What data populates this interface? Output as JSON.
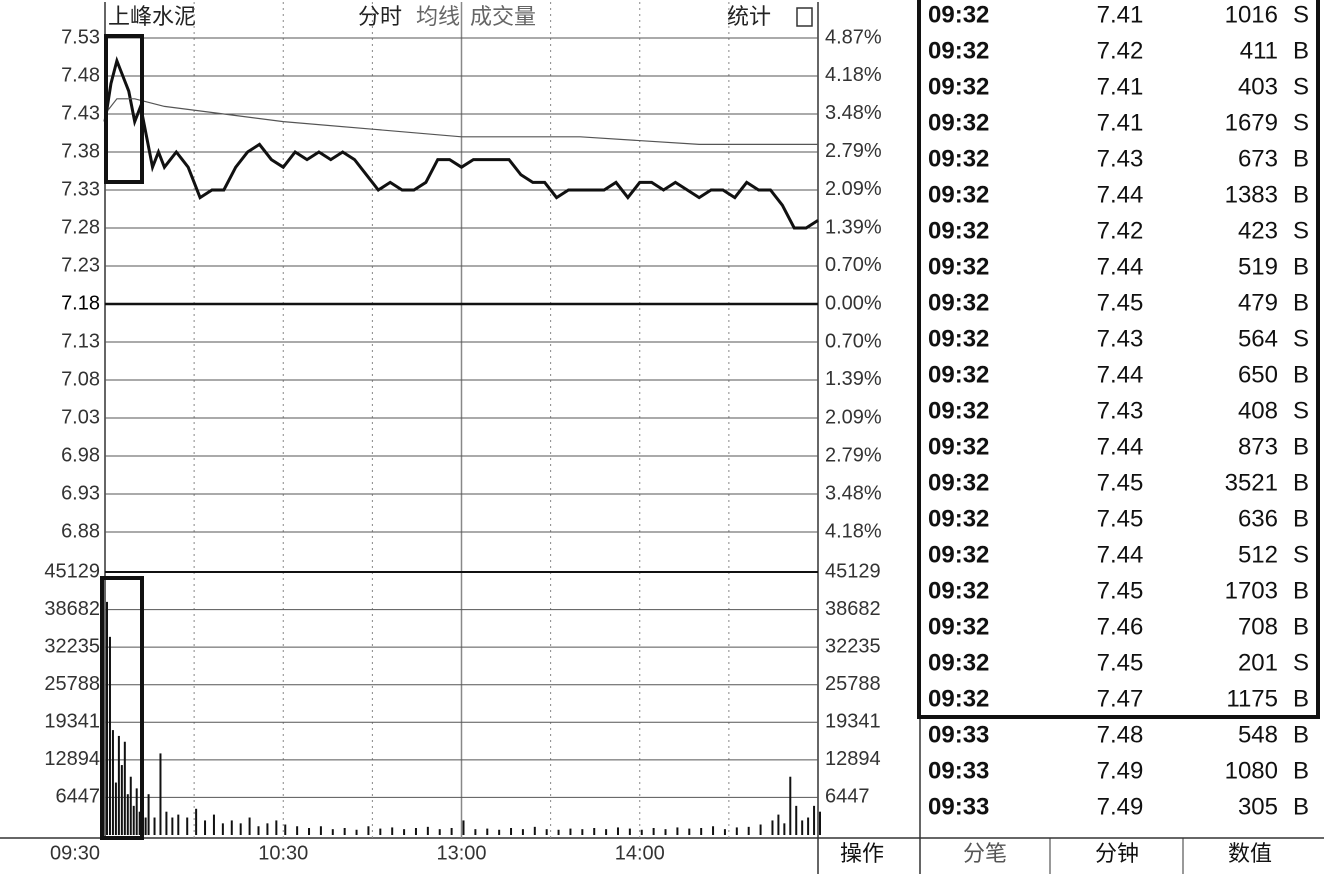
{
  "header": {
    "stock": "上峰水泥",
    "mode": "分时",
    "avg": "均线",
    "vol": "成交量",
    "stats": "统计"
  },
  "chart_data": [
    {
      "type": "line",
      "ylim": [
        6.83,
        7.53
      ],
      "yticks": [
        7.53,
        7.48,
        7.43,
        7.38,
        7.33,
        7.28,
        7.23,
        7.18,
        7.13,
        7.08,
        7.03,
        6.98,
        6.93,
        6.88
      ],
      "y2lim": [
        -4.87,
        4.87
      ],
      "y2ticks": [
        {
          "value": 4.87,
          "label": "4.87%"
        },
        {
          "value": 4.18,
          "label": "4.18%"
        },
        {
          "value": 3.48,
          "label": "3.48%"
        },
        {
          "value": 2.79,
          "label": "2.79%"
        },
        {
          "value": 2.09,
          "label": "2.09%"
        },
        {
          "value": 1.39,
          "label": "1.39%"
        },
        {
          "value": 0.7,
          "label": "0.70%"
        },
        {
          "value": 0,
          "label": "0.00%"
        },
        {
          "value": -0.7,
          "label": "0.70%"
        },
        {
          "value": -1.39,
          "label": "1.39%"
        },
        {
          "value": -2.09,
          "label": "2.09%"
        },
        {
          "value": -2.79,
          "label": "2.79%"
        },
        {
          "value": -3.48,
          "label": "3.48%"
        },
        {
          "value": -4.18,
          "label": "4.18%"
        }
      ],
      "xlim": [
        0,
        240
      ],
      "xticks": [
        {
          "value": 0,
          "label": "09:30"
        },
        {
          "value": 60,
          "label": "10:30"
        },
        {
          "value": 120,
          "label": "13:00"
        },
        {
          "value": 180,
          "label": "14:00"
        }
      ],
      "xminor_ticks": [
        30,
        90,
        150,
        210
      ],
      "series": [
        {
          "color": "#111",
          "x": [
            0,
            2,
            4,
            6,
            8,
            10,
            12,
            14,
            16,
            18,
            20,
            22,
            24,
            26,
            28,
            32,
            36,
            40,
            44,
            48,
            52,
            56,
            60,
            64,
            68,
            72,
            76,
            80,
            84,
            88,
            92,
            96,
            100,
            104,
            108,
            112,
            116,
            120,
            124,
            128,
            132,
            136,
            140,
            144,
            148,
            152,
            156,
            160,
            164,
            168,
            172,
            176,
            180,
            184,
            188,
            192,
            196,
            200,
            204,
            208,
            212,
            216,
            220,
            224,
            228,
            232,
            236,
            240
          ],
          "values": [
            7.42,
            7.47,
            7.5,
            7.48,
            7.46,
            7.42,
            7.44,
            7.4,
            7.36,
            7.38,
            7.36,
            7.37,
            7.38,
            7.37,
            7.36,
            7.32,
            7.33,
            7.33,
            7.36,
            7.38,
            7.39,
            7.37,
            7.36,
            7.38,
            7.37,
            7.38,
            7.37,
            7.38,
            7.37,
            7.35,
            7.33,
            7.34,
            7.33,
            7.33,
            7.34,
            7.37,
            7.37,
            7.36,
            7.37,
            7.37,
            7.37,
            7.37,
            7.35,
            7.34,
            7.34,
            7.32,
            7.33,
            7.33,
            7.33,
            7.33,
            7.34,
            7.32,
            7.34,
            7.34,
            7.33,
            7.34,
            7.33,
            7.32,
            7.33,
            7.33,
            7.32,
            7.34,
            7.33,
            7.33,
            7.31,
            7.28,
            7.28,
            7.29
          ]
        },
        {
          "color": "#555",
          "x": [
            0,
            4,
            10,
            20,
            40,
            60,
            90,
            120,
            160,
            200,
            240
          ],
          "values": [
            7.43,
            7.45,
            7.45,
            7.44,
            7.43,
            7.42,
            7.41,
            7.4,
            7.4,
            7.39,
            7.39
          ]
        }
      ]
    },
    {
      "type": "bar",
      "ylim": [
        0,
        45129
      ],
      "yticks": [
        45129,
        38682,
        32235,
        25788,
        19341,
        12894,
        6447
      ],
      "xlim": [
        0,
        240
      ],
      "color": "#111",
      "x": [
        0,
        1,
        2,
        3,
        4,
        5,
        6,
        7,
        8,
        9,
        10,
        11,
        12,
        13,
        14,
        16,
        18,
        20,
        22,
        24,
        27,
        30,
        33,
        36,
        39,
        42,
        45,
        48,
        51,
        54,
        57,
        60,
        64,
        68,
        72,
        76,
        80,
        84,
        88,
        92,
        96,
        100,
        104,
        108,
        112,
        116,
        120,
        124,
        128,
        132,
        136,
        140,
        144,
        148,
        152,
        156,
        160,
        164,
        168,
        172,
        176,
        180,
        184,
        188,
        192,
        196,
        200,
        204,
        208,
        212,
        216,
        220,
        224,
        226,
        228,
        230,
        232,
        234,
        236,
        238,
        240
      ],
      "values": [
        40000,
        34000,
        18000,
        9000,
        17000,
        12000,
        16000,
        7000,
        10000,
        5000,
        8000,
        4000,
        6000,
        3000,
        7000,
        3000,
        14000,
        4000,
        3000,
        3500,
        3000,
        4500,
        2500,
        3500,
        2000,
        2500,
        2000,
        3000,
        1500,
        2000,
        2500,
        1800,
        1500,
        1200,
        1500,
        1000,
        1200,
        900,
        1500,
        1100,
        1300,
        1000,
        1200,
        1400,
        1000,
        1200,
        2500,
        1000,
        1100,
        900,
        1200,
        1000,
        1400,
        1000,
        900,
        1100,
        1000,
        1200,
        1000,
        1300,
        1100,
        900,
        1200,
        1000,
        1300,
        1100,
        1200,
        1500,
        1000,
        1300,
        1400,
        1800,
        2500,
        3500,
        2000,
        10000,
        5000,
        2500,
        3000,
        5000,
        4000
      ]
    }
  ],
  "table": {
    "rows": [
      [
        "09:32",
        7.41,
        1016,
        "S"
      ],
      [
        "09:32",
        7.42,
        411,
        "B"
      ],
      [
        "09:32",
        7.41,
        403,
        "S"
      ],
      [
        "09:32",
        7.41,
        1679,
        "S"
      ],
      [
        "09:32",
        7.43,
        673,
        "B"
      ],
      [
        "09:32",
        7.44,
        1383,
        "B"
      ],
      [
        "09:32",
        7.42,
        423,
        "S"
      ],
      [
        "09:32",
        7.44,
        519,
        "B"
      ],
      [
        "09:32",
        7.45,
        479,
        "B"
      ],
      [
        "09:32",
        7.43,
        564,
        "S"
      ],
      [
        "09:32",
        7.44,
        650,
        "B"
      ],
      [
        "09:32",
        7.43,
        408,
        "S"
      ],
      [
        "09:32",
        7.44,
        873,
        "B"
      ],
      [
        "09:32",
        7.45,
        3521,
        "B"
      ],
      [
        "09:32",
        7.45,
        636,
        "B"
      ],
      [
        "09:32",
        7.44,
        512,
        "S"
      ],
      [
        "09:32",
        7.45,
        1703,
        "B"
      ],
      [
        "09:32",
        7.46,
        708,
        "B"
      ],
      [
        "09:32",
        7.45,
        201,
        "S"
      ],
      [
        "09:32",
        7.47,
        1175,
        "B"
      ],
      [
        "09:33",
        7.48,
        548,
        "B"
      ],
      [
        "09:33",
        7.49,
        1080,
        "B"
      ],
      [
        "09:33",
        7.49,
        305,
        "B"
      ]
    ]
  },
  "tabs": {
    "action": "操作",
    "items": [
      "分笔",
      "分钟",
      "数值"
    ]
  }
}
